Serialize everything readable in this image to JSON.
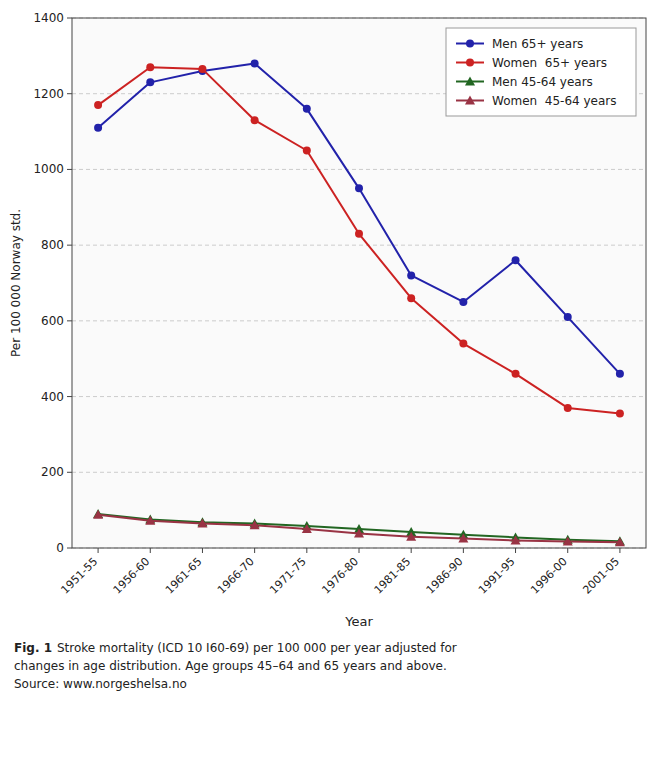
{
  "chart_data": {
    "type": "line",
    "categories": [
      "1951-55",
      "1956-60",
      "1961-65",
      "1966-70",
      "1971-75",
      "1976-80",
      "1981-85",
      "1986-90",
      "1991-95",
      "1996-00",
      "2001-05"
    ],
    "series": [
      {
        "name": "Men 65+ years",
        "color": "#2222aa",
        "marker": "circle",
        "values": [
          1110,
          1230,
          1260,
          1280,
          1160,
          950,
          720,
          650,
          760,
          610,
          460
        ]
      },
      {
        "name": "Women  65+ years",
        "color": "#cc2222",
        "marker": "circle",
        "values": [
          1170,
          1270,
          1265,
          1130,
          1050,
          830,
          660,
          540,
          460,
          370,
          355
        ]
      },
      {
        "name": "Men 45-64 years",
        "color": "#226622",
        "marker": "triangle",
        "values": [
          90,
          75,
          68,
          65,
          58,
          50,
          42,
          35,
          28,
          22,
          18
        ]
      },
      {
        "name": "Women  45-64 years",
        "color": "#993344",
        "marker": "triangle",
        "values": [
          88,
          72,
          65,
          60,
          50,
          38,
          30,
          25,
          20,
          17,
          15
        ]
      }
    ],
    "y_label": "Per 100 000 Norway std.",
    "x_label": "Year",
    "ylim": [
      0,
      1400
    ],
    "yticks": [
      0,
      200,
      400,
      600,
      800,
      1000,
      1200,
      1400
    ],
    "grid": true,
    "legend": "upper-right",
    "annotations": [
      "Fig. 1",
      "Stroke mortality (ICD 10 I60-69) per 100 000 per year adjusted for\nchanges in age distribution. Age groups 45–64 and 65 years and above.\nSource: www.norgeshelsa.no"
    ]
  }
}
